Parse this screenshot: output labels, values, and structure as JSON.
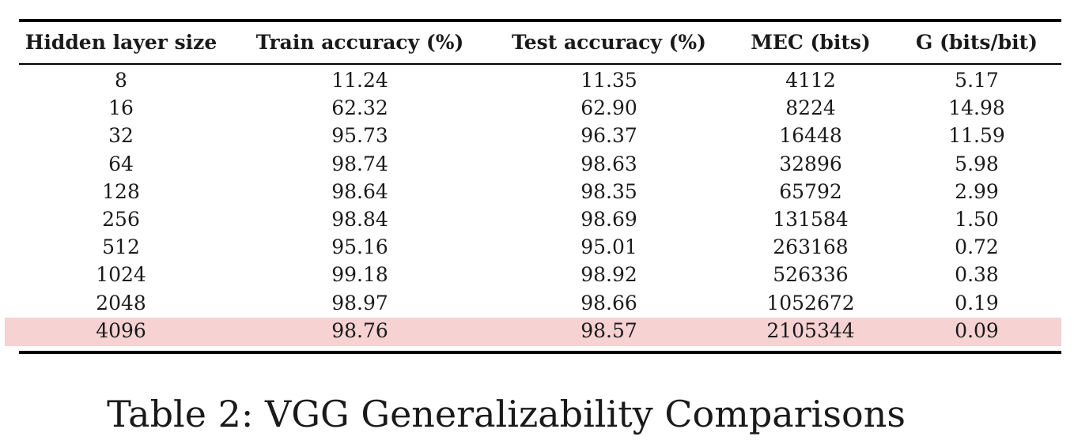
{
  "table": {
    "headers": [
      "Hidden layer size",
      "Train accuracy (%)",
      "Test accuracy (%)",
      "MEC (bits)",
      "G (bits/bit)"
    ],
    "rows": [
      [
        "8",
        "11.24",
        "11.35",
        "4112",
        "5.17"
      ],
      [
        "16",
        "62.32",
        "62.90",
        "8224",
        "14.98"
      ],
      [
        "32",
        "95.73",
        "96.37",
        "16448",
        "11.59"
      ],
      [
        "64",
        "98.74",
        "98.63",
        "32896",
        "5.98"
      ],
      [
        "128",
        "98.64",
        "98.35",
        "65792",
        "2.99"
      ],
      [
        "256",
        "98.84",
        "98.69",
        "131584",
        "1.50"
      ],
      [
        "512",
        "95.16",
        "95.01",
        "263168",
        "0.72"
      ],
      [
        "1024",
        "99.18",
        "98.92",
        "526336",
        "0.38"
      ],
      [
        "2048",
        "98.97",
        "98.66",
        "1052672",
        "0.19"
      ],
      [
        "4096",
        "98.76",
        "98.57",
        "2105344",
        "0.09"
      ]
    ],
    "highlighted_row": 9,
    "highlight_color": "#f6d2d2"
  },
  "caption": "Table 2: VGG Generalizability Comparisons"
}
